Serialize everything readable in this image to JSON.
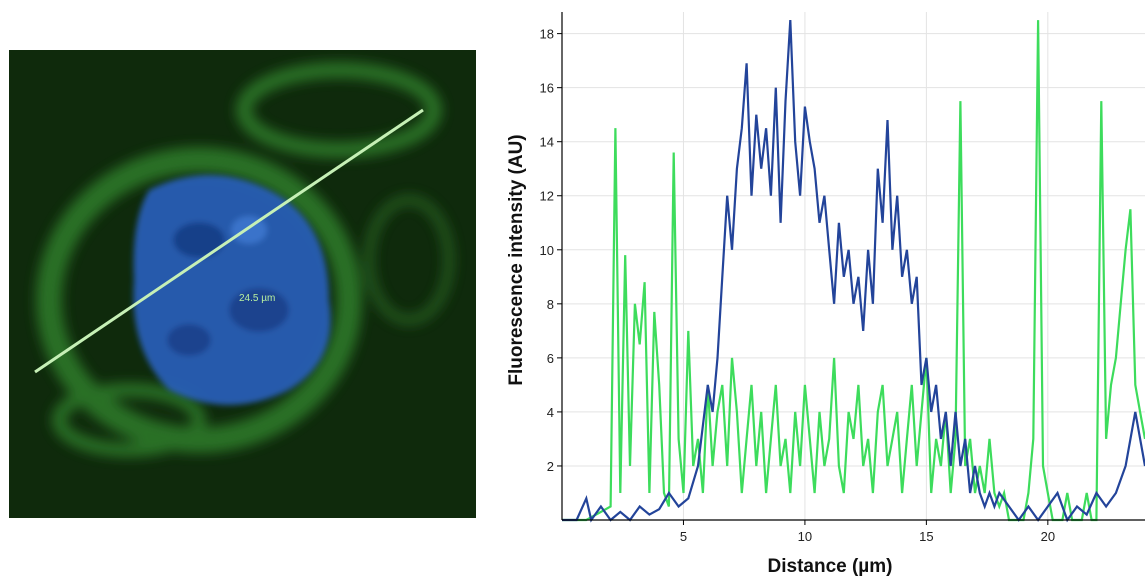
{
  "micrograph": {
    "scale_label": "24.5 µm",
    "colors": {
      "background": "#0f2a0c",
      "nucleus": "#2a63c8",
      "membrane": "#3b8f3a",
      "line": "#c6f0b6"
    }
  },
  "chart_data": {
    "type": "line",
    "xlabel": "Distance (µm)",
    "ylabel": "Fluorescence intensity (AU)",
    "xlim": [
      0,
      24
    ],
    "ylim": [
      0,
      18.8
    ],
    "xticks": [
      5,
      10,
      15,
      20
    ],
    "yticks": [
      2,
      4,
      6,
      8,
      10,
      12,
      14,
      16,
      18
    ],
    "grid": true,
    "series": [
      {
        "color": "#3ddc5c",
        "x": [
          0.0,
          1.0,
          2.0,
          2.2,
          2.4,
          2.6,
          2.8,
          3.0,
          3.2,
          3.4,
          3.6,
          3.8,
          4.0,
          4.2,
          4.4,
          4.6,
          4.8,
          5.0,
          5.2,
          5.4,
          5.6,
          5.8,
          6.0,
          6.2,
          6.4,
          6.6,
          6.8,
          7.0,
          7.2,
          7.4,
          7.6,
          7.8,
          8.0,
          8.2,
          8.4,
          8.6,
          8.8,
          9.0,
          9.2,
          9.4,
          9.6,
          9.8,
          10.0,
          10.2,
          10.4,
          10.6,
          10.8,
          11.0,
          11.2,
          11.4,
          11.6,
          11.8,
          12.0,
          12.2,
          12.4,
          12.6,
          12.8,
          13.0,
          13.2,
          13.4,
          13.6,
          13.8,
          14.0,
          14.2,
          14.4,
          14.6,
          14.8,
          15.0,
          15.2,
          15.4,
          15.6,
          15.8,
          16.0,
          16.2,
          16.4,
          16.6,
          16.8,
          17.0,
          17.2,
          17.4,
          17.6,
          17.8,
          18.0,
          18.2,
          18.4,
          18.6,
          18.8,
          19.0,
          19.2,
          19.4,
          19.6,
          19.8,
          20.0,
          20.2,
          20.4,
          20.6,
          20.8,
          21.0,
          21.2,
          21.4,
          21.6,
          21.8,
          22.0,
          22.2,
          22.4,
          22.6,
          22.8,
          23.0,
          23.2,
          23.4,
          23.6,
          23.8,
          24.0
        ],
        "y": [
          0,
          0,
          0.5,
          14.5,
          1,
          9.8,
          2,
          8,
          6.5,
          8.8,
          1,
          7.7,
          5,
          1,
          0.5,
          13.6,
          3,
          1,
          7,
          2,
          3,
          1,
          5,
          2,
          4,
          5,
          2,
          6,
          4,
          1,
          3,
          5,
          2,
          4,
          1,
          3,
          5,
          2,
          3,
          1,
          4,
          2,
          5,
          3,
          1,
          4,
          2,
          3,
          6,
          2,
          1,
          4,
          3,
          5,
          2,
          3,
          1,
          4,
          5,
          2,
          3,
          4,
          1,
          3,
          5,
          2,
          4,
          6,
          1,
          3,
          2,
          4,
          1,
          3,
          15.5,
          2,
          3,
          1,
          2,
          1,
          3,
          1,
          0.5,
          1,
          0,
          0,
          0,
          0,
          1,
          3,
          18.5,
          2,
          1,
          0,
          0,
          0,
          1,
          0,
          0,
          0,
          1,
          0,
          0,
          15.5,
          3,
          5,
          6,
          8,
          10,
          11.5,
          5,
          4,
          3
        ]
      },
      {
        "color": "#23449a",
        "x": [
          0.0,
          0.6,
          1.0,
          1.2,
          1.6,
          2.0,
          2.4,
          2.8,
          3.2,
          3.6,
          4.0,
          4.4,
          4.8,
          5.2,
          5.6,
          6.0,
          6.2,
          6.4,
          6.6,
          6.8,
          7.0,
          7.2,
          7.4,
          7.6,
          7.8,
          8.0,
          8.2,
          8.4,
          8.6,
          8.8,
          9.0,
          9.2,
          9.4,
          9.6,
          9.8,
          10.0,
          10.2,
          10.4,
          10.6,
          10.8,
          11.0,
          11.2,
          11.4,
          11.6,
          11.8,
          12.0,
          12.2,
          12.4,
          12.6,
          12.8,
          13.0,
          13.2,
          13.4,
          13.6,
          13.8,
          14.0,
          14.2,
          14.4,
          14.6,
          14.8,
          15.0,
          15.2,
          15.4,
          15.6,
          15.8,
          16.0,
          16.2,
          16.4,
          16.6,
          16.8,
          17.0,
          17.2,
          17.4,
          17.6,
          17.8,
          18.0,
          18.4,
          18.8,
          19.2,
          19.6,
          20.0,
          20.4,
          20.8,
          21.2,
          21.6,
          22.0,
          22.4,
          22.8,
          23.2,
          23.6,
          24.0
        ],
        "y": [
          0,
          0,
          0.8,
          0,
          0.5,
          0,
          0.3,
          0,
          0.5,
          0.2,
          0.4,
          1,
          0.5,
          0.8,
          2,
          5,
          4,
          6,
          9,
          12,
          10,
          13,
          14.5,
          16.9,
          12,
          15,
          13,
          14.5,
          12,
          16,
          11,
          15.5,
          18.5,
          14,
          12,
          15.3,
          14,
          13,
          11,
          12,
          10,
          8,
          11,
          9,
          10,
          8,
          9,
          7,
          10,
          8,
          13,
          11,
          14.8,
          10,
          12,
          9,
          10,
          8,
          9,
          5,
          6,
          4,
          5,
          3,
          4,
          2,
          4,
          2,
          3,
          1,
          2,
          1,
          0.5,
          1,
          0.5,
          1,
          0.5,
          0,
          0.5,
          0,
          0.5,
          1,
          0,
          0.5,
          0.2,
          1,
          0.5,
          1,
          2,
          4,
          2
        ]
      }
    ]
  }
}
